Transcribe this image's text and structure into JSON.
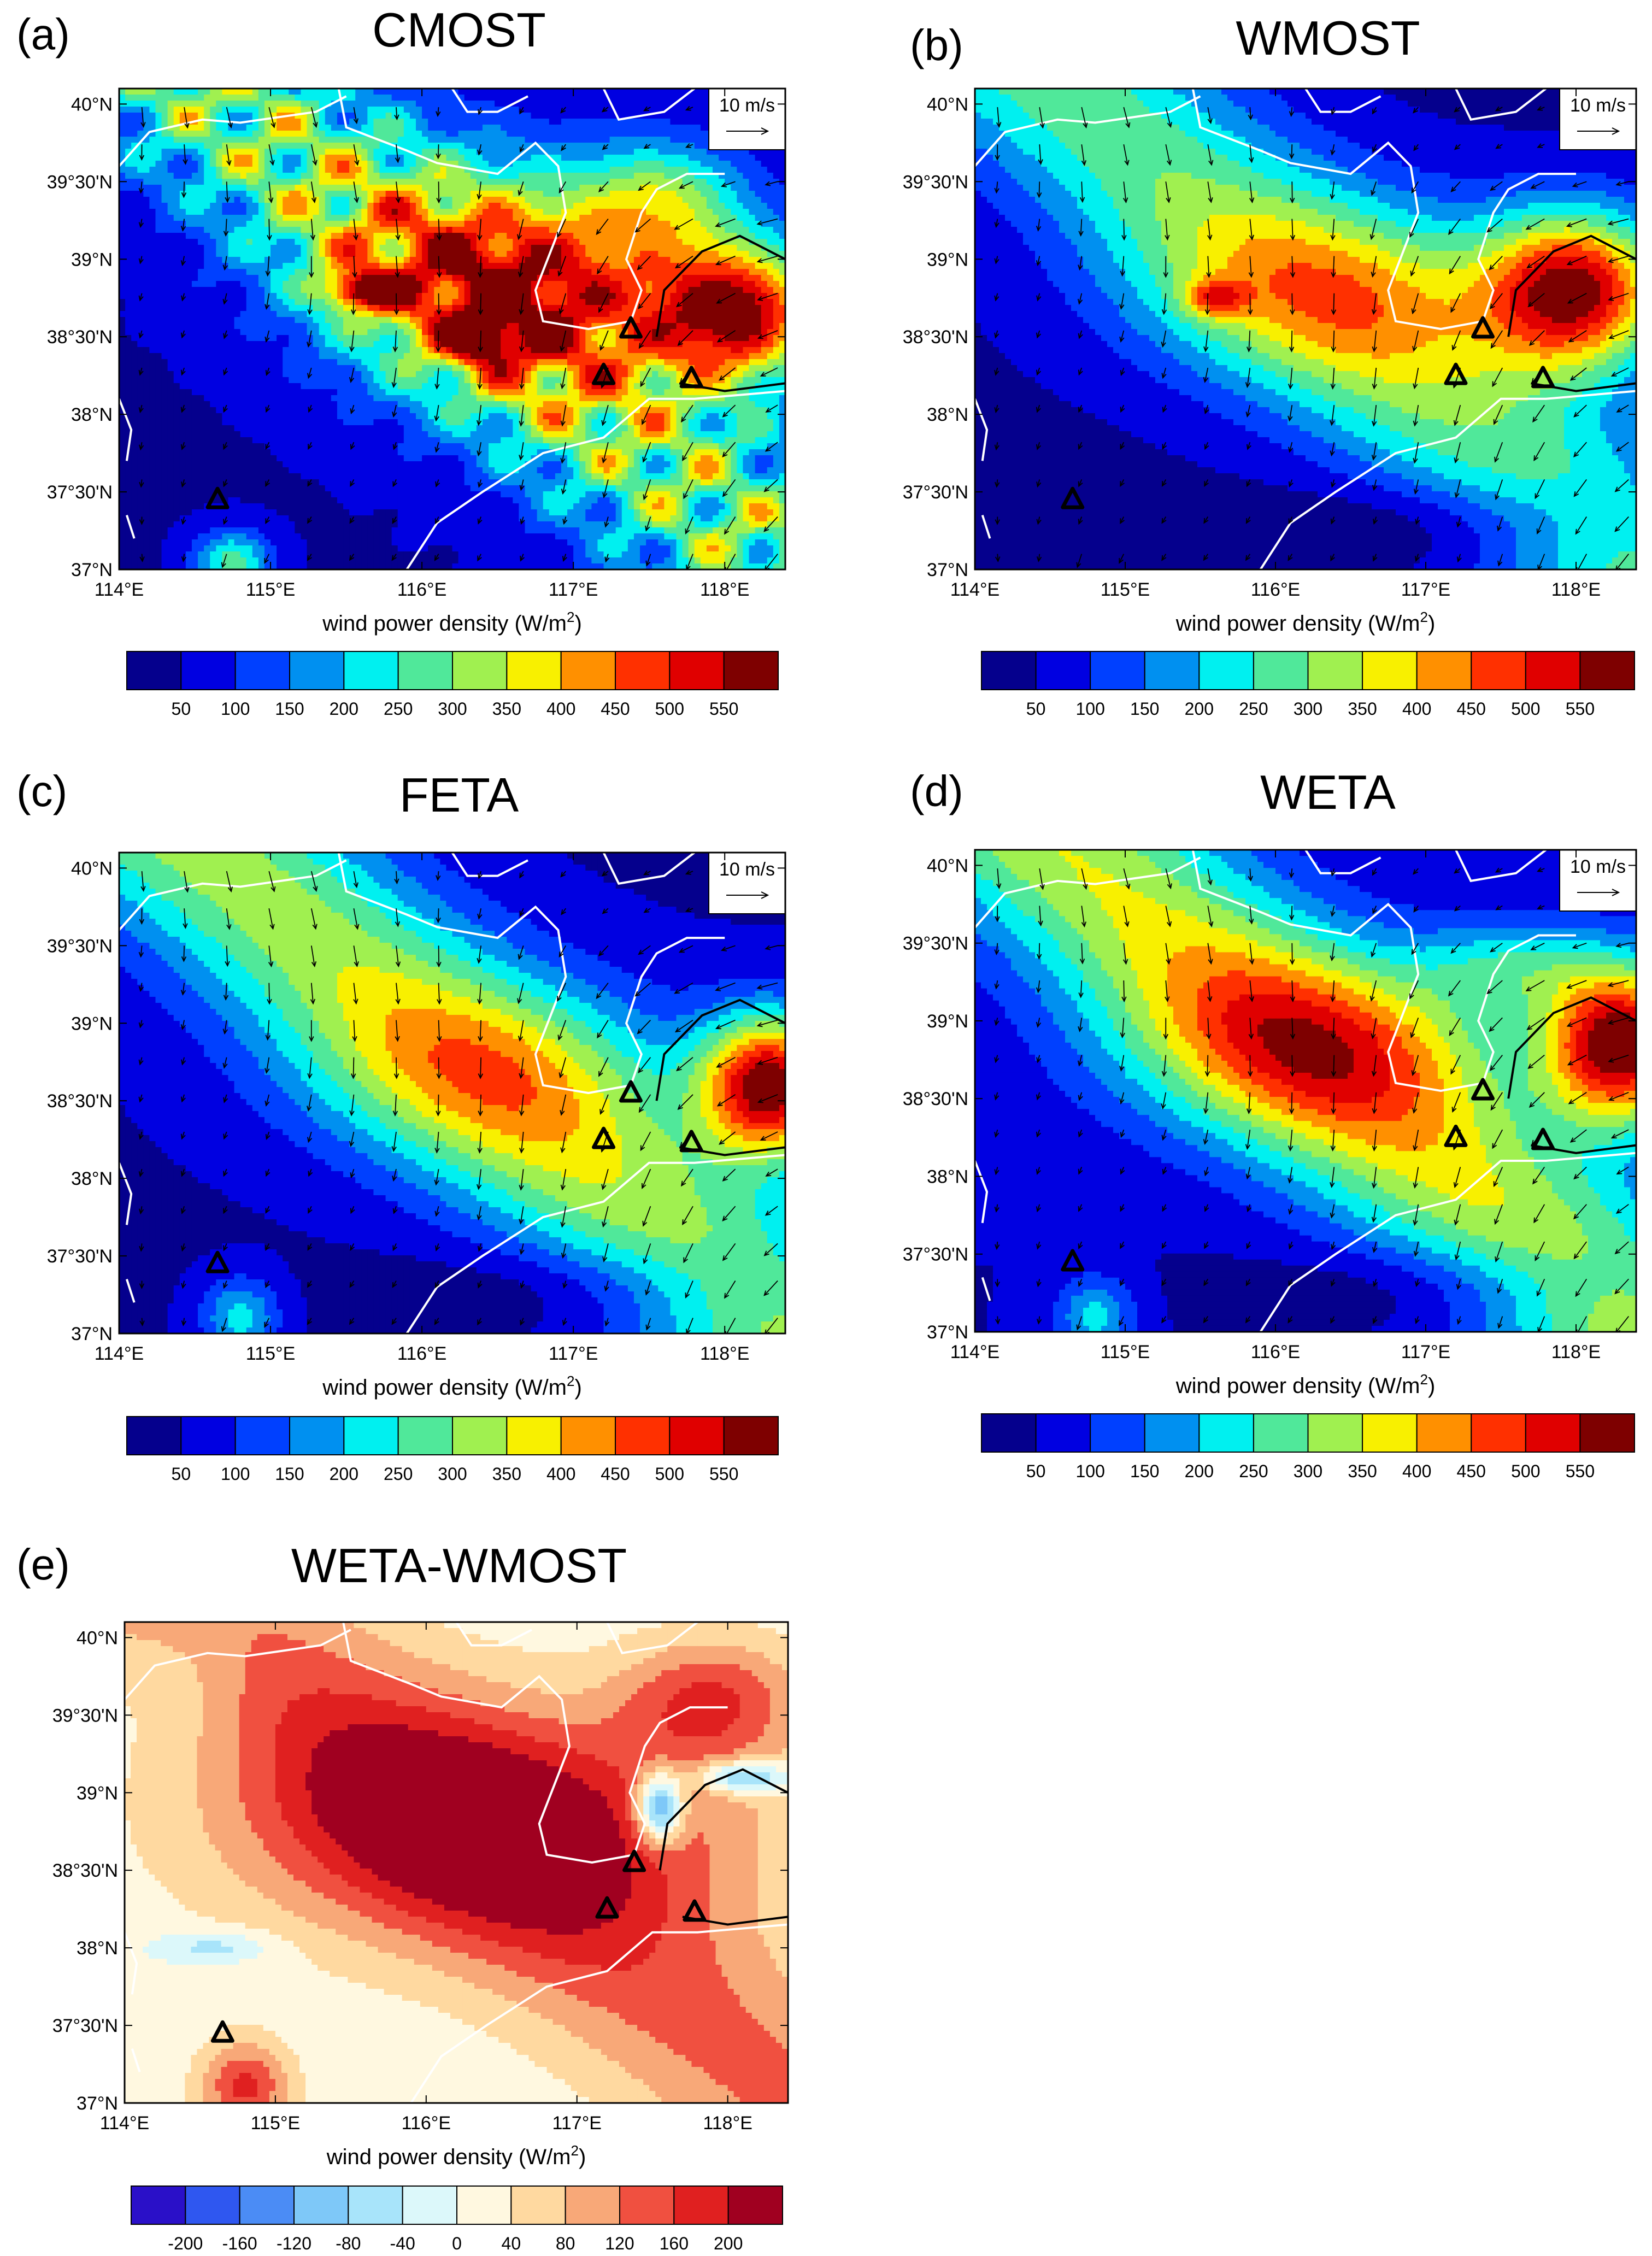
{
  "chart_data": [
    {
      "panel": "(a)",
      "title": "CMOST",
      "type": "heatmap",
      "variable": "wind power density (W/m2)",
      "xlabel_text": "wind power density (W/m",
      "xlabel_sup": "2",
      "xlabel_close": ")",
      "x_ticks": [
        "114°E",
        "115°E",
        "116°E",
        "117°E",
        "118°E"
      ],
      "y_ticks": [
        "37°N",
        "37°30'N",
        "38°N",
        "38°30'N",
        "39°N",
        "39°30'N",
        "40°N"
      ],
      "xlim": [
        114,
        118.4
      ],
      "ylim": [
        37,
        40.1
      ],
      "colorbar_levels": [
        50,
        100,
        150,
        200,
        250,
        300,
        350,
        400,
        450,
        500,
        550
      ],
      "colorbar_labels": [
        "50",
        "100",
        "150",
        "200",
        "250",
        "300",
        "350",
        "400",
        "450",
        "500",
        "550"
      ],
      "colorbar_colors": [
        "#05008d",
        "#0000e1",
        "#0040ff",
        "#0090f0",
        "#00f0f0",
        "#50e89a",
        "#a0f050",
        "#f8f000",
        "#ff9000",
        "#ff3000",
        "#e00000",
        "#7e0000"
      ],
      "reference_vector": "10 m/s",
      "stations": [
        [
          114.65,
          37.45
        ],
        [
          117.2,
          38.25
        ],
        [
          117.38,
          38.55
        ],
        [
          117.78,
          38.23
        ]
      ]
    },
    {
      "panel": "(b)",
      "title": "WMOST",
      "type": "heatmap",
      "variable": "wind power density (W/m2)",
      "xlabel_text": "wind power density (W/m",
      "xlabel_sup": "2",
      "xlabel_close": ")",
      "x_ticks": [
        "114°E",
        "115°E",
        "116°E",
        "117°E",
        "118°E"
      ],
      "y_ticks": [
        "37°N",
        "37°30'N",
        "38°N",
        "38°30'N",
        "39°N",
        "39°30'N",
        "40°N"
      ],
      "xlim": [
        114,
        118.4
      ],
      "ylim": [
        37,
        40.1
      ],
      "colorbar_levels": [
        50,
        100,
        150,
        200,
        250,
        300,
        350,
        400,
        450,
        500,
        550
      ],
      "colorbar_labels": [
        "50",
        "100",
        "150",
        "200",
        "250",
        "300",
        "350",
        "400",
        "450",
        "500",
        "550"
      ],
      "colorbar_colors": [
        "#05008d",
        "#0000e1",
        "#0040ff",
        "#0090f0",
        "#00f0f0",
        "#50e89a",
        "#a0f050",
        "#f8f000",
        "#ff9000",
        "#ff3000",
        "#e00000",
        "#7e0000"
      ],
      "reference_vector": "10 m/s",
      "stations": [
        [
          114.65,
          37.45
        ],
        [
          117.2,
          38.25
        ],
        [
          117.38,
          38.55
        ],
        [
          117.78,
          38.23
        ]
      ]
    },
    {
      "panel": "(c)",
      "title": "FETA",
      "type": "heatmap",
      "variable": "wind power density (W/m2)",
      "xlabel_text": "wind power density (W/m",
      "xlabel_sup": "2",
      "xlabel_close": ")",
      "x_ticks": [
        "114°E",
        "115°E",
        "116°E",
        "117°E",
        "118°E"
      ],
      "y_ticks": [
        "37°N",
        "37°30'N",
        "38°N",
        "38°30'N",
        "39°N",
        "39°30'N",
        "40°N"
      ],
      "xlim": [
        114,
        118.4
      ],
      "ylim": [
        37,
        40.1
      ],
      "colorbar_levels": [
        50,
        100,
        150,
        200,
        250,
        300,
        350,
        400,
        450,
        500,
        550
      ],
      "colorbar_labels": [
        "50",
        "100",
        "150",
        "200",
        "250",
        "300",
        "350",
        "400",
        "450",
        "500",
        "550"
      ],
      "colorbar_colors": [
        "#05008d",
        "#0000e1",
        "#0040ff",
        "#0090f0",
        "#00f0f0",
        "#50e89a",
        "#a0f050",
        "#f8f000",
        "#ff9000",
        "#ff3000",
        "#e00000",
        "#7e0000"
      ],
      "reference_vector": "10 m/s",
      "stations": [
        [
          114.65,
          37.45
        ],
        [
          117.2,
          38.25
        ],
        [
          117.38,
          38.55
        ],
        [
          117.78,
          38.23
        ]
      ]
    },
    {
      "panel": "(d)",
      "title": "WETA",
      "type": "heatmap",
      "variable": "wind power density (W/m2)",
      "xlabel_text": "wind power density (W/m",
      "xlabel_sup": "2",
      "xlabel_close": ")",
      "x_ticks": [
        "114°E",
        "115°E",
        "116°E",
        "117°E",
        "118°E"
      ],
      "y_ticks": [
        "37°N",
        "37°30'N",
        "38°N",
        "38°30'N",
        "39°N",
        "39°30'N",
        "40°N"
      ],
      "xlim": [
        114,
        118.4
      ],
      "ylim": [
        37,
        40.1
      ],
      "colorbar_levels": [
        50,
        100,
        150,
        200,
        250,
        300,
        350,
        400,
        450,
        500,
        550
      ],
      "colorbar_labels": [
        "50",
        "100",
        "150",
        "200",
        "250",
        "300",
        "350",
        "400",
        "450",
        "500",
        "550"
      ],
      "colorbar_colors": [
        "#05008d",
        "#0000e1",
        "#0040ff",
        "#0090f0",
        "#00f0f0",
        "#50e89a",
        "#a0f050",
        "#f8f000",
        "#ff9000",
        "#ff3000",
        "#e00000",
        "#7e0000"
      ],
      "reference_vector": "10 m/s",
      "stations": [
        [
          114.65,
          37.45
        ],
        [
          117.2,
          38.25
        ],
        [
          117.38,
          38.55
        ],
        [
          117.78,
          38.23
        ]
      ]
    },
    {
      "panel": "(e)",
      "title": "WETA-WMOST",
      "type": "heatmap",
      "variable": "wind power density (W/m2)",
      "xlabel_text": "wind power density (W/m",
      "xlabel_sup": "2",
      "xlabel_close": ")",
      "x_ticks": [
        "114°E",
        "115°E",
        "116°E",
        "117°E",
        "118°E"
      ],
      "y_ticks": [
        "37°N",
        "37°30'N",
        "38°N",
        "38°30'N",
        "39°N",
        "39°30'N",
        "40°N"
      ],
      "xlim": [
        114,
        118.4
      ],
      "ylim": [
        37,
        40.1
      ],
      "colorbar_levels": [
        -200,
        -160,
        -120,
        -80,
        -40,
        0,
        40,
        80,
        120,
        160,
        200
      ],
      "colorbar_labels": [
        "-200",
        "-160",
        "-120",
        "-80",
        "-40",
        "0",
        "40",
        "80",
        "120",
        "160",
        "200"
      ],
      "colorbar_colors": [
        "#2a10c8",
        "#2f57f0",
        "#4b8cf5",
        "#7ec8f8",
        "#a8e4fa",
        "#dcf8fa",
        "#fff8e0",
        "#ffd9a0",
        "#f8a878",
        "#f05040",
        "#e02020",
        "#a00020"
      ],
      "reference_vector": "",
      "stations": [
        [
          114.65,
          37.45
        ],
        [
          117.2,
          38.25
        ],
        [
          117.38,
          38.55
        ],
        [
          117.78,
          38.23
        ]
      ]
    }
  ]
}
